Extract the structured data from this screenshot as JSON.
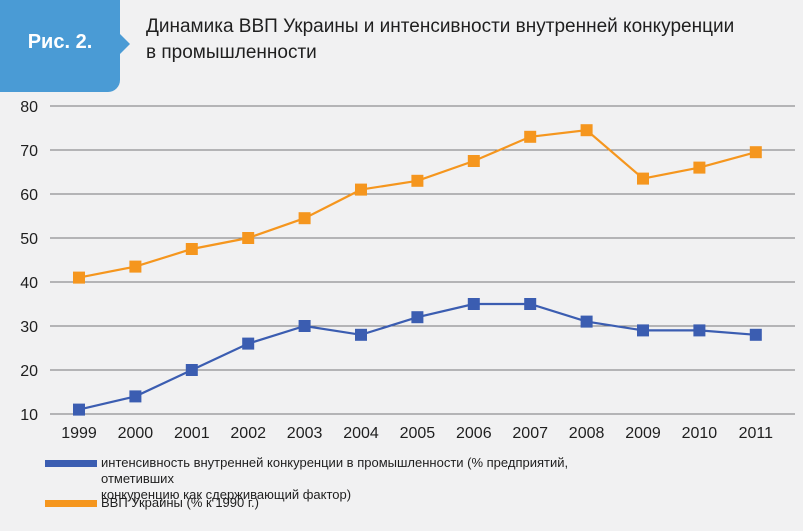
{
  "header": {
    "badge": "Рис. 2.",
    "title_line1": "Динамика ВВП Украины и интенсивности внутренней конкуренции",
    "title_line2": "в промышленности"
  },
  "colors": {
    "badge": "#4a9bd5",
    "gdp": "#f5961e",
    "competition": "#3b5db1",
    "grid": "#000000"
  },
  "chart_data": {
    "type": "line",
    "title": "Динамика ВВП Украины и интенсивности внутренней конкуренции в промышленности",
    "x": [
      "1999",
      "2000",
      "2001",
      "2002",
      "2003",
      "2004",
      "2005",
      "2006",
      "2007",
      "2008",
      "2009",
      "2010",
      "2011"
    ],
    "ylim": [
      10,
      80
    ],
    "yticks": [
      10,
      20,
      30,
      40,
      50,
      60,
      70,
      80
    ],
    "grid": true,
    "legend_position": "bottom",
    "series": [
      {
        "name": "интенсивность внутренней конкуренции в промышленности (% предприятий, отметивших конкуренцию как сдерживающий фактор)",
        "color": "#3b5db1",
        "marker": "square",
        "values": [
          11,
          14,
          20,
          26,
          30,
          28,
          32,
          35,
          35,
          31,
          29,
          29,
          28
        ]
      },
      {
        "name": "ВВП Украины (% к 1990 г.)",
        "color": "#f5961e",
        "marker": "square",
        "values": [
          41,
          43.5,
          47.5,
          50,
          54.5,
          61,
          63,
          67.5,
          73,
          74.5,
          63.5,
          66,
          69.5
        ]
      }
    ]
  },
  "legend": {
    "competition_line1": "интенсивность внутренней конкуренции в промышленности (% предприятий, отметивших",
    "competition_line2": "конкуренцию как сдерживающий фактор)",
    "gdp": "ВВП Украины (% к 1990 г.)"
  }
}
